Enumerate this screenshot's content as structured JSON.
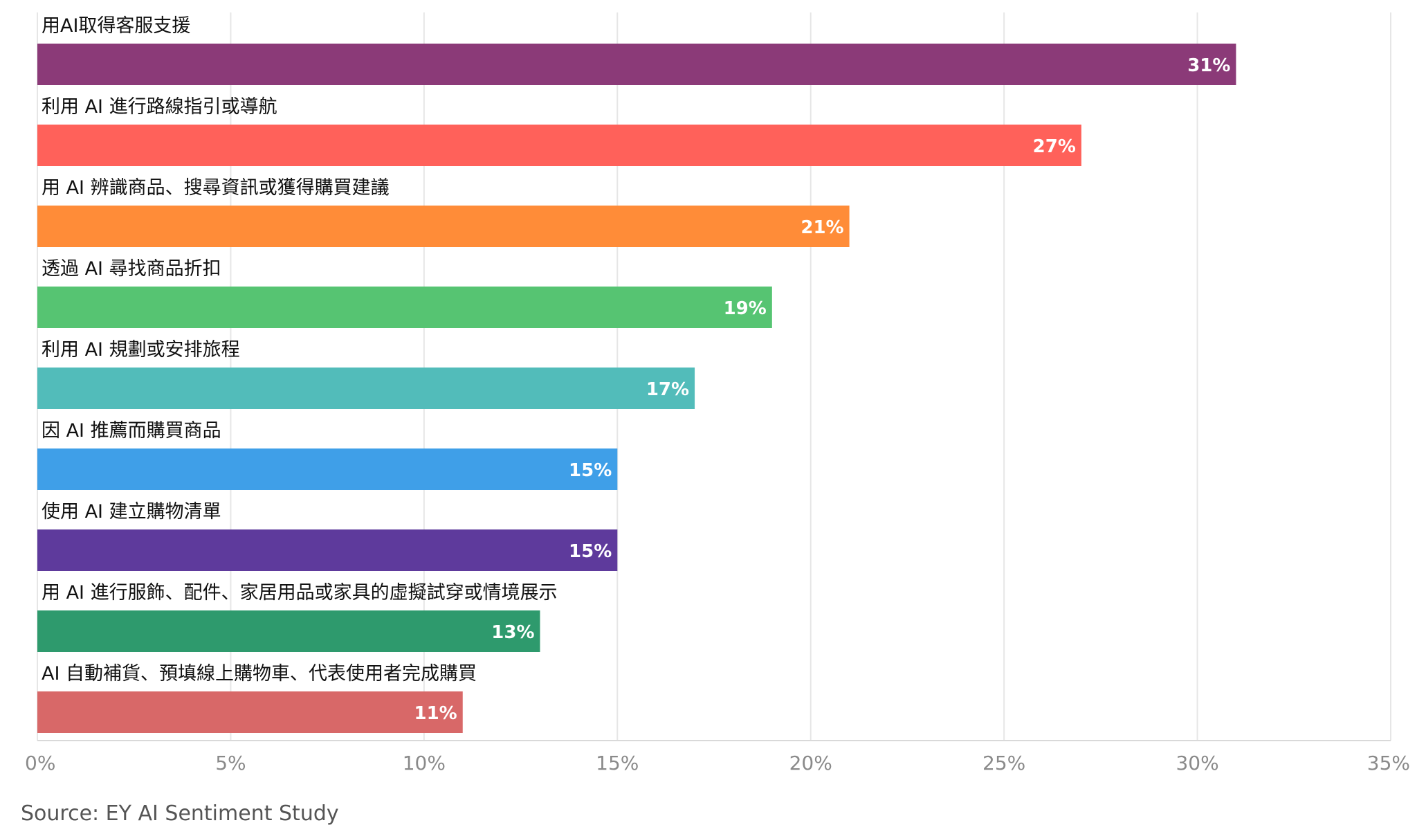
{
  "chart_data": {
    "type": "bar",
    "orientation": "horizontal",
    "categories": [
      "用AI取得客服支援",
      "利用 AI 進行路線指引或導航",
      "用 AI 辨識商品、搜尋資訊或獲得購買建議",
      "透過 AI 尋找商品折扣",
      "利用 AI 規劃或安排旅程",
      "因 AI 推薦而購買商品",
      "使用 AI 建立購物清單",
      "用 AI 進行服飾、配件、家居用品或家具的虛擬試穿或情境展示",
      "AI 自動補貨、預填線上購物車、代表使用者完成購買"
    ],
    "values": [
      31,
      27,
      21,
      19,
      17,
      15,
      15,
      13,
      11
    ],
    "value_labels": [
      "31%",
      "27%",
      "21%",
      "19%",
      "17%",
      "15%",
      "15%",
      "13%",
      "11%"
    ],
    "colors": [
      "#8B3A78",
      "#FF615A",
      "#FF8C38",
      "#56C472",
      "#52BCBA",
      "#3F9FE8",
      "#5E3A9C",
      "#2E9A6D",
      "#D86868"
    ],
    "xlim": [
      0,
      35
    ],
    "xticks": [
      0,
      5,
      10,
      15,
      20,
      25,
      30,
      35
    ],
    "xtick_labels": [
      "0%",
      "5%",
      "10%",
      "15%",
      "20%",
      "25%",
      "30%",
      "35%"
    ],
    "grid": true
  },
  "source": "Source: EY AI Sentiment Study"
}
